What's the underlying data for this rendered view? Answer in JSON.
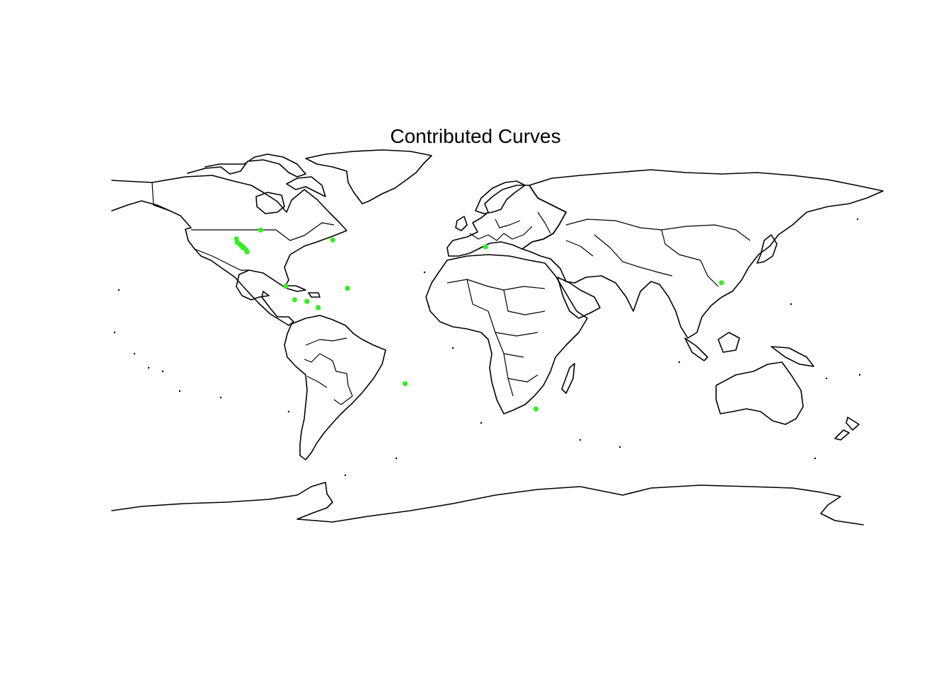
{
  "title": "Contributed Curves",
  "colors": {
    "point": "#33ee22",
    "outline": "#000000",
    "background": "#ffffff"
  },
  "map": {
    "projection": "equirectangular",
    "lon_range": [
      -180,
      180
    ],
    "lat_range": [
      -90,
      90
    ]
  },
  "points": [
    {
      "lon": -122.6,
      "lat": 40.1
    },
    {
      "lon": -122.2,
      "lat": 38.6
    },
    {
      "lon": -121.3,
      "lat": 37.9
    },
    {
      "lon": -120.4,
      "lat": 37.2
    },
    {
      "lon": -119.6,
      "lat": 36.7
    },
    {
      "lon": -118.8,
      "lat": 35.9
    },
    {
      "lon": -118.0,
      "lat": 35.2
    },
    {
      "lon": -117.6,
      "lat": 34.4
    },
    {
      "lon": -119.7,
      "lat": 36.4
    },
    {
      "lon": -111.2,
      "lat": 43.9
    },
    {
      "lon": -77.2,
      "lat": 39.6
    },
    {
      "lon": -99.4,
      "lat": 19.5
    },
    {
      "lon": -95.2,
      "lat": 13.6
    },
    {
      "lon": -89.4,
      "lat": 12.9
    },
    {
      "lon": -84.1,
      "lat": 10.2
    },
    {
      "lon": -70.3,
      "lat": 18.6
    },
    {
      "lon": -43.1,
      "lat": -22.9
    },
    {
      "lon": -5.3,
      "lat": 36.6
    },
    {
      "lon": 18.5,
      "lat": -33.9
    },
    {
      "lon": 105.9,
      "lat": 21.0
    }
  ]
}
